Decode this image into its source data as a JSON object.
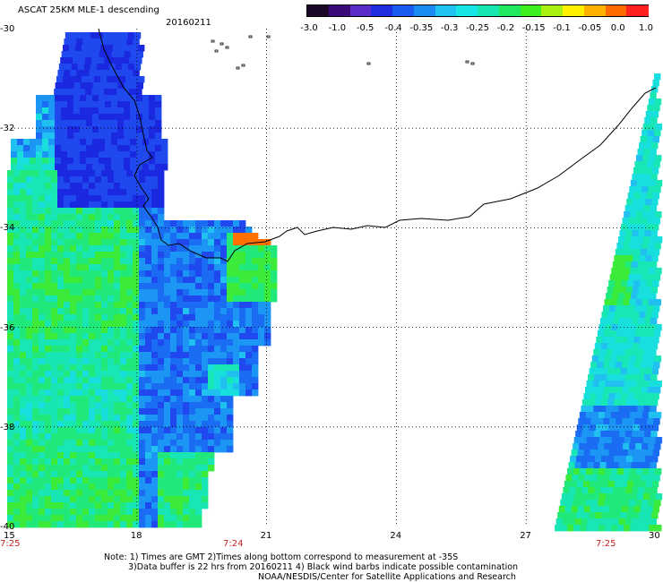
{
  "header": {
    "title": "ASCAT 25KM MLE-1 descending",
    "date": "20160211"
  },
  "colorbar": {
    "tick_labels": [
      "-3.0",
      "-1.0",
      "-0.5",
      "-0.4",
      "-0.35",
      "-0.3",
      "-0.25",
      "-0.2",
      "-0.15",
      "-0.1",
      "-0.05",
      "0.0",
      "1.0"
    ],
    "colors": [
      "#1a0826",
      "#3a0a78",
      "#5b2dc8",
      "#1f2ee0",
      "#1a5cf0",
      "#1b8cf2",
      "#20c2f0",
      "#18e6e6",
      "#18e6b0",
      "#20e860",
      "#3cf020",
      "#a8f010",
      "#fff000",
      "#ffb000",
      "#ff6a00",
      "#ff2020"
    ]
  },
  "axes": {
    "lat_labels": [
      "-30",
      "-32",
      "-34",
      "-36",
      "-38",
      "-40"
    ],
    "lon_labels": [
      "15",
      "18",
      "21",
      "24",
      "27",
      "30"
    ],
    "time_labels": [
      "7:25",
      "7:24",
      "7:25"
    ]
  },
  "footer": {
    "line1": "Note: 1) Times are GMT 2)Times along bottom correspond to measurement at -35S",
    "line2": "3)Data buffer is 22 hrs from 20160211 4) Black wind barbs indicate possible contamination",
    "line3": "NOAA/NESDIS/Center for Satellite Applications and Research"
  },
  "style": {
    "time_label_color": "#c81e1e",
    "grid_color": "#000000"
  }
}
